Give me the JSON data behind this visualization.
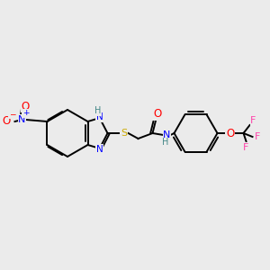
{
  "bg_color": "#ebebeb",
  "bond_color": "#000000",
  "atom_colors": {
    "N": "#0000ff",
    "O": "#ff0000",
    "S": "#ccaa00",
    "F": "#ff44aa",
    "H": "#448888",
    "NO2_N": "#0000ff",
    "NO2_O": "#ff0000",
    "NO2_Om": "#ff0000"
  },
  "font_size": 7.5,
  "bond_lw": 1.4
}
